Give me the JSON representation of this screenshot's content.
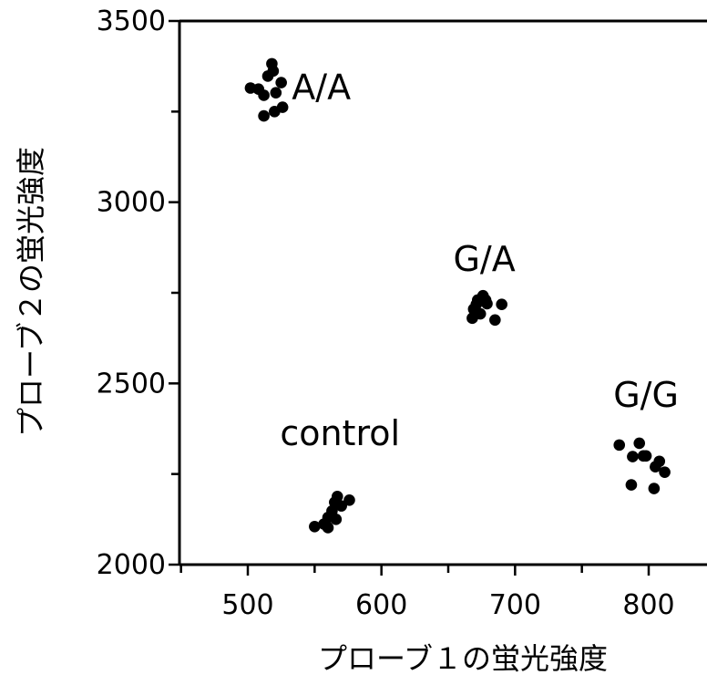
{
  "chart_data": {
    "type": "scatter",
    "title": "",
    "xlabel": "プローブ１の蛍光強度",
    "ylabel": "プローブ２の蛍光強度",
    "xlim": [
      450,
      830
    ],
    "ylim": [
      2000,
      3500
    ],
    "xticks": [
      500,
      600,
      700,
      800
    ],
    "yticks": [
      2000,
      2500,
      3000,
      3500
    ],
    "grid": false,
    "legend": "none",
    "marker_color": "#000000",
    "series": [
      {
        "name": "A/A",
        "label_pos": [
          555,
          3285
        ],
        "points": [
          [
            502,
            3315
          ],
          [
            508,
            3312
          ],
          [
            512,
            3295
          ],
          [
            515,
            3348
          ],
          [
            518,
            3382
          ],
          [
            519,
            3362
          ],
          [
            521,
            3302
          ],
          [
            525,
            3330
          ],
          [
            520,
            3250
          ],
          [
            512,
            3238
          ],
          [
            526,
            3262
          ]
        ]
      },
      {
        "name": "G/A",
        "label_pos": [
          677,
          2810
        ],
        "points": [
          [
            668,
            2680
          ],
          [
            669,
            2705
          ],
          [
            671,
            2718
          ],
          [
            672,
            2730
          ],
          [
            674,
            2692
          ],
          [
            676,
            2742
          ],
          [
            678,
            2730
          ],
          [
            679,
            2720
          ],
          [
            690,
            2718
          ],
          [
            685,
            2675
          ],
          [
            670,
            2690
          ]
        ]
      },
      {
        "name": "G/G",
        "label_pos": [
          798,
          2435
        ],
        "points": [
          [
            778,
            2330
          ],
          [
            793,
            2335
          ],
          [
            788,
            2298
          ],
          [
            796,
            2300
          ],
          [
            808,
            2285
          ],
          [
            812,
            2255
          ],
          [
            805,
            2270
          ],
          [
            787,
            2220
          ],
          [
            804,
            2210
          ],
          [
            798,
            2300
          ]
        ]
      },
      {
        "name": "control",
        "label_pos": [
          569,
          2330
        ],
        "points": [
          [
            550,
            2105
          ],
          [
            557,
            2112
          ],
          [
            560,
            2130
          ],
          [
            563,
            2148
          ],
          [
            565,
            2172
          ],
          [
            567,
            2188
          ],
          [
            570,
            2162
          ],
          [
            576,
            2178
          ],
          [
            560,
            2102
          ],
          [
            566,
            2125
          ]
        ]
      }
    ]
  }
}
